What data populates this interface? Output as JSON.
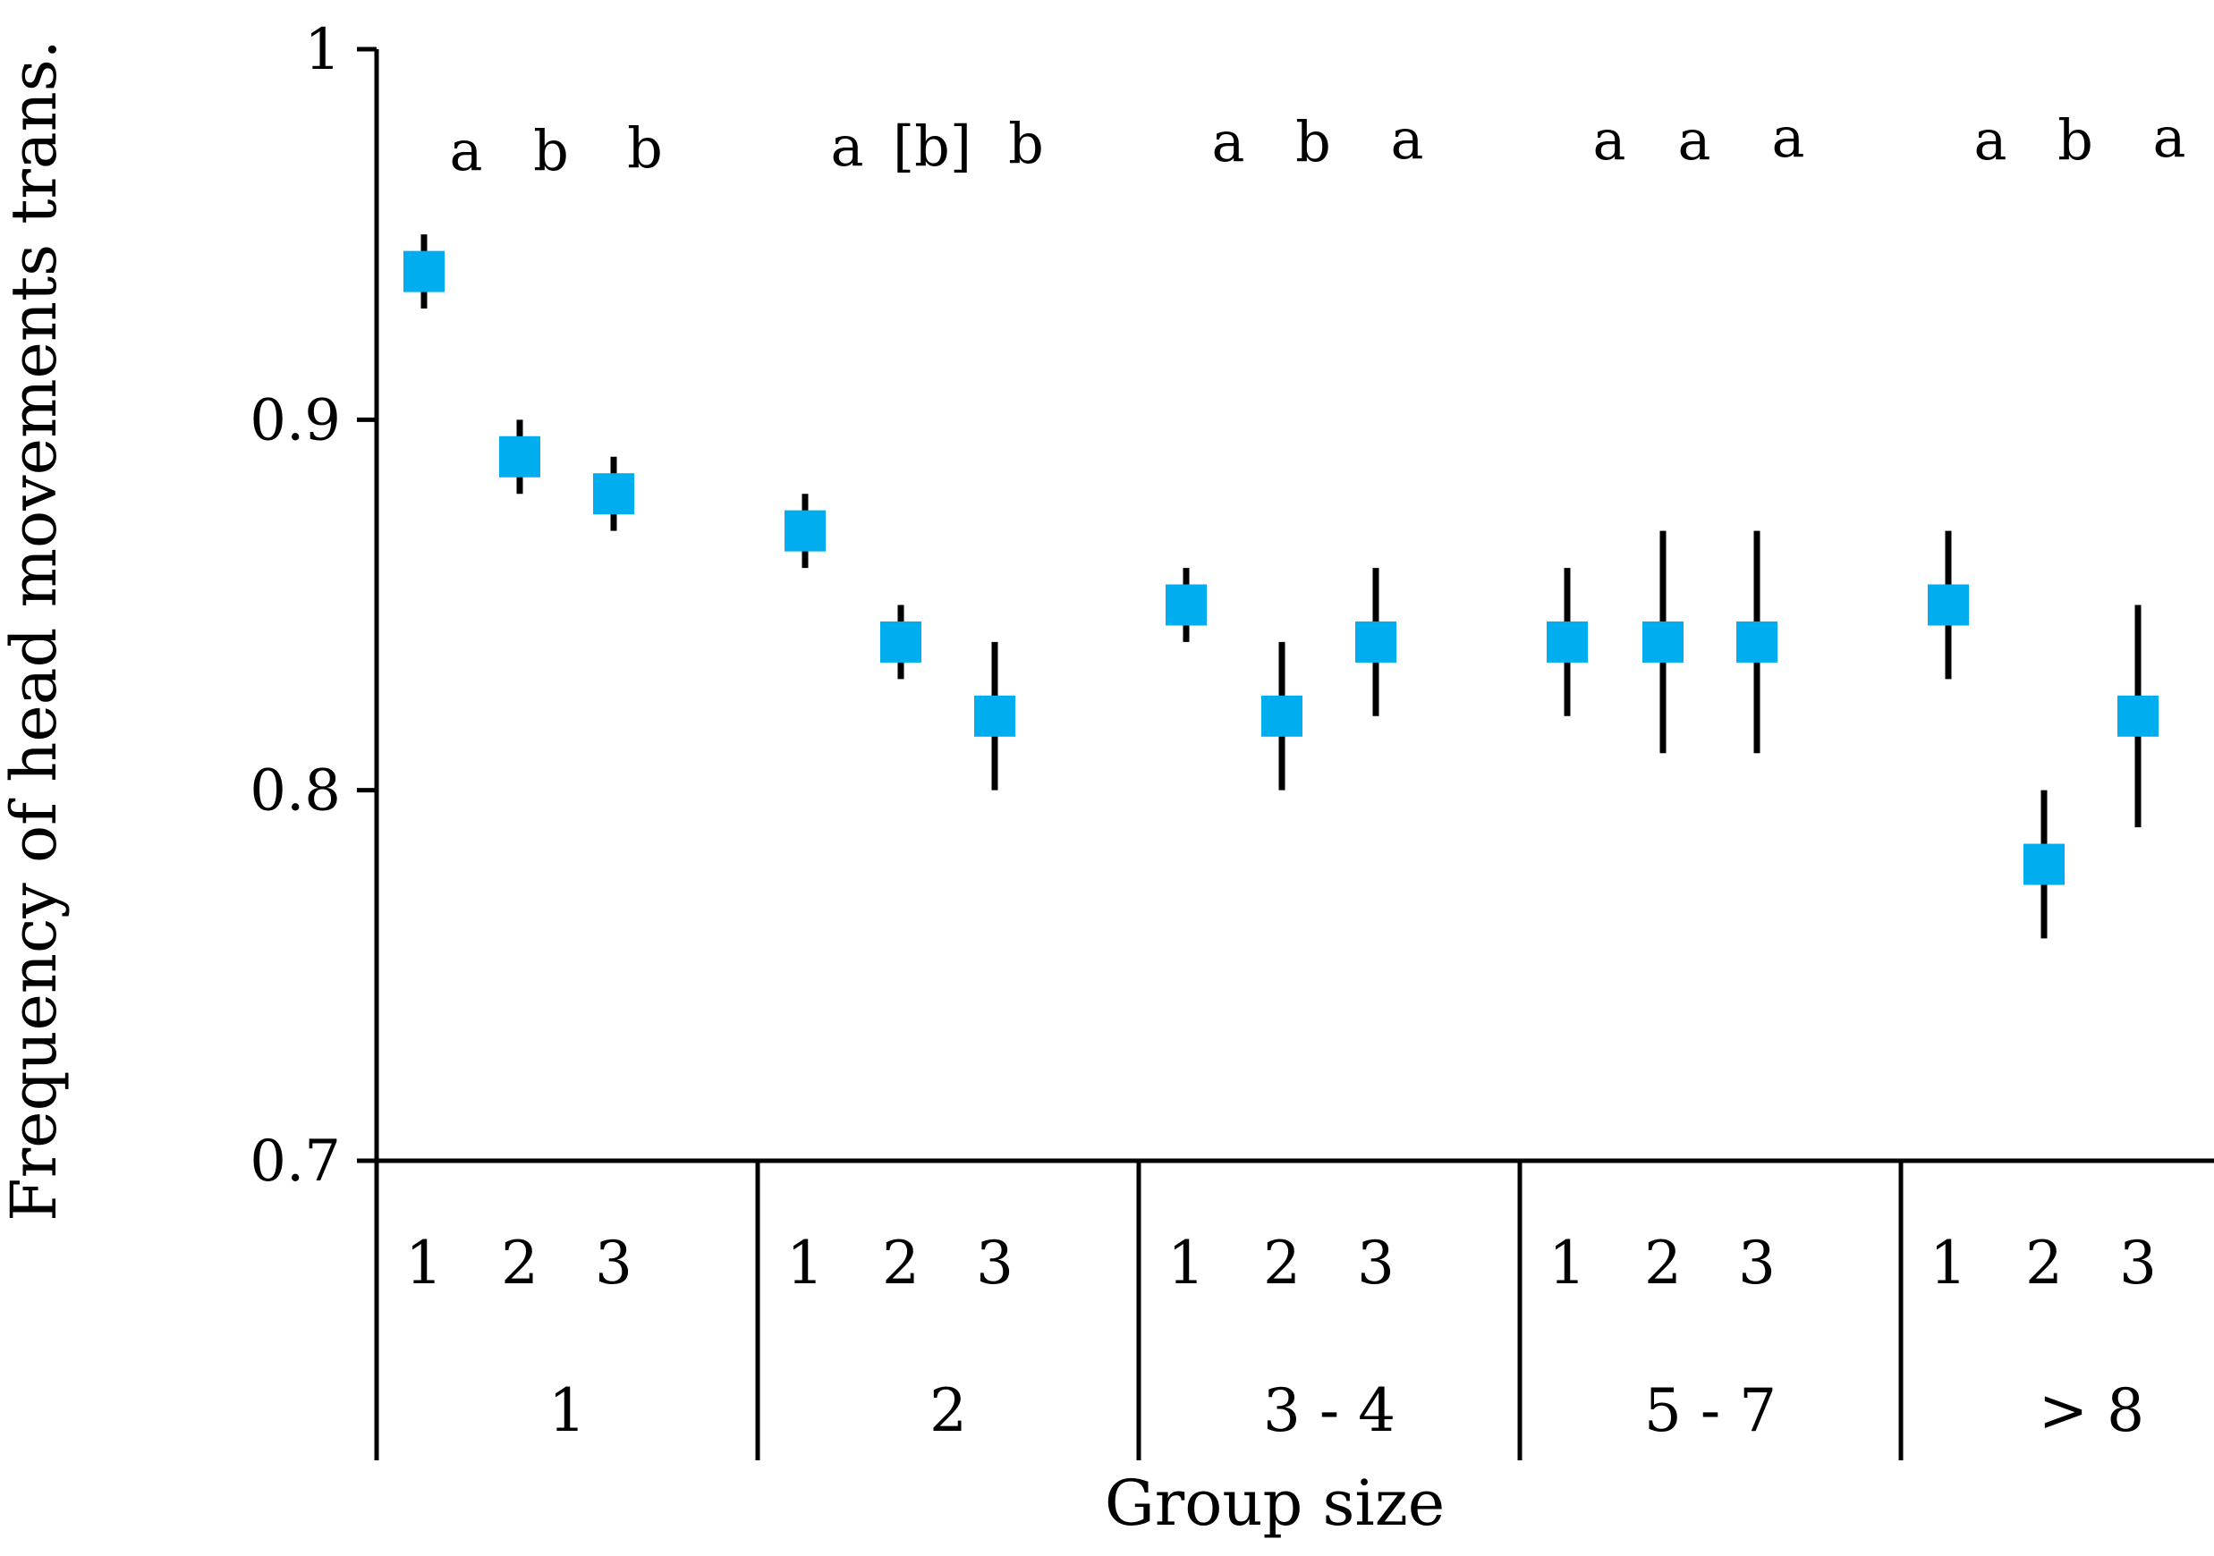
{
  "chart_data": {
    "type": "scatter",
    "ylabel": "Frequency of head movements trans.",
    "xlabel": "Group size",
    "ylim": [
      0.7,
      1.0
    ],
    "yticks": [
      "0.7",
      "0.8",
      "0.9",
      "1"
    ],
    "groups": [
      {
        "label": "1",
        "points": [
          {
            "sub": "1",
            "y": 0.94,
            "low": 0.93,
            "high": 0.95,
            "sig": "a"
          },
          {
            "sub": "2",
            "y": 0.89,
            "low": 0.88,
            "high": 0.9,
            "sig": "b"
          },
          {
            "sub": "3",
            "y": 0.88,
            "low": 0.87,
            "high": 0.89,
            "sig": "b"
          }
        ]
      },
      {
        "label": "2",
        "points": [
          {
            "sub": "1",
            "y": 0.87,
            "low": 0.86,
            "high": 0.88,
            "sig": "a"
          },
          {
            "sub": "2",
            "y": 0.84,
            "low": 0.83,
            "high": 0.85,
            "sig": "[b]"
          },
          {
            "sub": "3",
            "y": 0.82,
            "low": 0.8,
            "high": 0.84,
            "sig": "b"
          }
        ]
      },
      {
        "label": "3 - 4",
        "points": [
          {
            "sub": "1",
            "y": 0.85,
            "low": 0.84,
            "high": 0.86,
            "sig": "a"
          },
          {
            "sub": "2",
            "y": 0.82,
            "low": 0.8,
            "high": 0.84,
            "sig": "b"
          },
          {
            "sub": "3",
            "y": 0.84,
            "low": 0.82,
            "high": 0.86,
            "sig": "a"
          }
        ]
      },
      {
        "label": "5 - 7",
        "points": [
          {
            "sub": "1",
            "y": 0.84,
            "low": 0.82,
            "high": 0.86,
            "sig": "a"
          },
          {
            "sub": "2",
            "y": 0.84,
            "low": 0.81,
            "high": 0.87,
            "sig": "a"
          },
          {
            "sub": "3",
            "y": 0.84,
            "low": 0.81,
            "high": 0.87,
            "sig": "a"
          }
        ]
      },
      {
        "label": "> 8",
        "points": [
          {
            "sub": "1",
            "y": 0.85,
            "low": 0.83,
            "high": 0.87,
            "sig": "a"
          },
          {
            "sub": "2",
            "y": 0.78,
            "low": 0.76,
            "high": 0.8,
            "sig": "b"
          },
          {
            "sub": "3",
            "y": 0.82,
            "low": 0.79,
            "high": 0.85,
            "sig": "a"
          }
        ]
      }
    ],
    "marker_color": "#00AEEF",
    "errorbar_color": "#000000",
    "grid": false
  }
}
